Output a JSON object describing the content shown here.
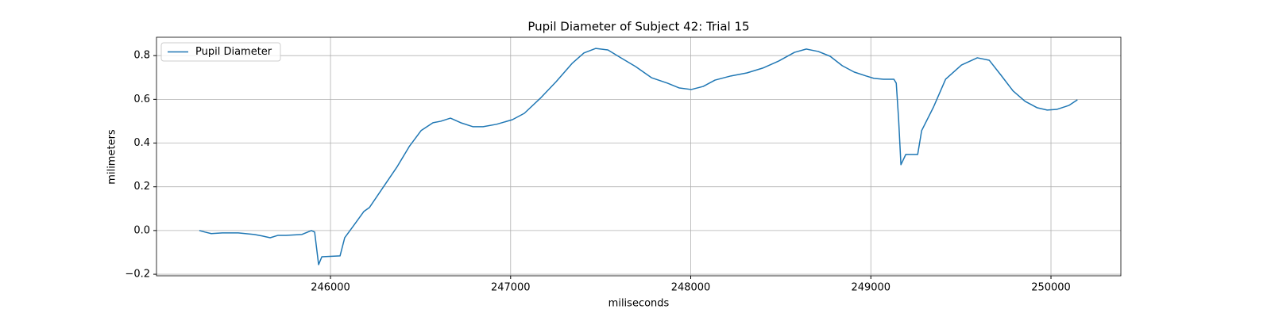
{
  "chart_data": {
    "type": "line",
    "title": "Pupil Diameter of Subject 42: Trial 15",
    "x_label": "miliseconds",
    "y_label": "milimeters",
    "x": [
      245272,
      245303,
      245338,
      245400,
      245488,
      245577,
      245621,
      245665,
      245709,
      245753,
      245841,
      245894,
      245912,
      245934,
      245952,
      246053,
      246079,
      246128,
      246185,
      246216,
      246282,
      246371,
      246437,
      246503,
      246569,
      246613,
      246666,
      246723,
      246790,
      246847,
      246922,
      247010,
      247076,
      247165,
      247253,
      247341,
      247407,
      247473,
      247540,
      247606,
      247694,
      247782,
      247871,
      247937,
      248003,
      248069,
      248135,
      248223,
      248312,
      248400,
      248488,
      248576,
      248642,
      248708,
      248774,
      248841,
      248907,
      248973,
      249017,
      249070,
      249128,
      249141,
      249154,
      249167,
      249194,
      249260,
      249282,
      249348,
      249415,
      249503,
      249591,
      249657,
      249723,
      249790,
      249856,
      249922,
      249979,
      250032,
      250099,
      250147
    ],
    "series": [
      {
        "name": "Pupil Diameter",
        "color": "#1f77b4",
        "values": [
          0.0,
          -0.007,
          -0.014,
          -0.011,
          -0.011,
          -0.018,
          -0.025,
          -0.033,
          -0.022,
          -0.022,
          -0.018,
          0.0,
          -0.007,
          -0.156,
          -0.12,
          -0.116,
          -0.033,
          0.022,
          0.087,
          0.105,
          0.185,
          0.293,
          0.384,
          0.457,
          0.493,
          0.5,
          0.514,
          0.493,
          0.475,
          0.475,
          0.486,
          0.507,
          0.536,
          0.605,
          0.681,
          0.764,
          0.812,
          0.833,
          0.826,
          0.793,
          0.75,
          0.699,
          0.674,
          0.652,
          0.645,
          0.659,
          0.688,
          0.707,
          0.721,
          0.743,
          0.775,
          0.815,
          0.83,
          0.819,
          0.797,
          0.754,
          0.725,
          0.707,
          0.696,
          0.692,
          0.692,
          0.674,
          0.511,
          0.301,
          0.348,
          0.348,
          0.457,
          0.565,
          0.692,
          0.757,
          0.79,
          0.779,
          0.71,
          0.638,
          0.591,
          0.562,
          0.551,
          0.554,
          0.572,
          0.598
        ]
      }
    ],
    "xlim": [
      245034,
      250388
    ],
    "ylim": [
      -0.207,
      0.884
    ],
    "xticks": [
      246000,
      247000,
      248000,
      249000,
      250000
    ],
    "yticks": [
      {
        "value": -0.2,
        "label": "−0.2"
      },
      {
        "value": 0,
        "label": "0.0"
      },
      0.2,
      0.4,
      0.6,
      0.8
    ],
    "grid": true,
    "legend": "upper-left"
  }
}
